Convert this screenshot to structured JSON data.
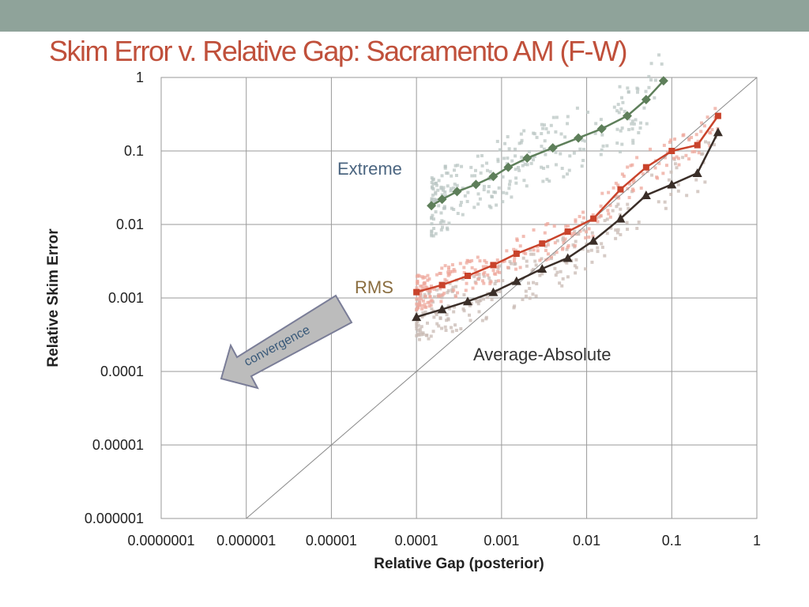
{
  "slide": {
    "title": "Skim Error v. Relative Gap: Sacramento AM (F-W)"
  },
  "colors": {
    "header_bar": "#8fa39a",
    "title": "#c0503b",
    "extreme": "#5e7f5a",
    "extreme_cloud": "#b9c6c3",
    "rms": "#c9432b",
    "rms_cloud": "#eea79b",
    "avg_abs": "#3a2e28",
    "avg_abs_cloud": "#c8b9b3",
    "arrow_fill": "#bcbcbc",
    "arrow_stroke": "#7a7d97"
  },
  "chart_data": {
    "type": "scatter",
    "title": "Skim Error v. Relative Gap: Sacramento AM (F-W)",
    "xlabel": "Relative Gap (posterior)",
    "ylabel": "Relative Skim Error",
    "x_scale": "log",
    "y_scale": "log",
    "xlim": [
      1e-07,
      1
    ],
    "ylim": [
      1e-06,
      1
    ],
    "grid": true,
    "x_ticks": [
      "0.0000001",
      "0.000001",
      "0.00001",
      "0.0001",
      "0.001",
      "0.01",
      "0.1",
      "1"
    ],
    "y_ticks": [
      "0.000001",
      "0.00001",
      "0.0001",
      "0.001",
      "0.01",
      "0.1",
      "1"
    ],
    "reference_line": {
      "name": "y = x",
      "from": [
        1e-06,
        1e-06
      ],
      "to": [
        1,
        1
      ]
    },
    "annotations": [
      "Extreme",
      "RMS",
      "Average-Absolute",
      "convergence"
    ],
    "series": [
      {
        "name": "Extreme",
        "color": "#5e7f5a",
        "points": [
          [
            0.00015,
            0.018
          ],
          [
            0.0002,
            0.022
          ],
          [
            0.0003,
            0.028
          ],
          [
            0.0005,
            0.035
          ],
          [
            0.0008,
            0.045
          ],
          [
            0.0012,
            0.06
          ],
          [
            0.002,
            0.08
          ],
          [
            0.004,
            0.11
          ],
          [
            0.008,
            0.15
          ],
          [
            0.015,
            0.2
          ],
          [
            0.03,
            0.3
          ],
          [
            0.05,
            0.5
          ],
          [
            0.08,
            0.9
          ]
        ]
      },
      {
        "name": "RMS",
        "color": "#c9432b",
        "points": [
          [
            0.0001,
            0.0012
          ],
          [
            0.0002,
            0.0015
          ],
          [
            0.0004,
            0.002
          ],
          [
            0.0008,
            0.0028
          ],
          [
            0.0015,
            0.004
          ],
          [
            0.003,
            0.0055
          ],
          [
            0.006,
            0.008
          ],
          [
            0.012,
            0.012
          ],
          [
            0.025,
            0.03
          ],
          [
            0.05,
            0.06
          ],
          [
            0.1,
            0.1
          ],
          [
            0.2,
            0.12
          ],
          [
            0.35,
            0.3
          ]
        ]
      },
      {
        "name": "Average-Absolute",
        "color": "#3a2e28",
        "points": [
          [
            0.0001,
            0.00055
          ],
          [
            0.0002,
            0.0007
          ],
          [
            0.0004,
            0.0009
          ],
          [
            0.0008,
            0.0012
          ],
          [
            0.0015,
            0.0017
          ],
          [
            0.003,
            0.0025
          ],
          [
            0.006,
            0.0035
          ],
          [
            0.012,
            0.006
          ],
          [
            0.025,
            0.012
          ],
          [
            0.05,
            0.025
          ],
          [
            0.1,
            0.035
          ],
          [
            0.2,
            0.05
          ],
          [
            0.35,
            0.18
          ]
        ]
      }
    ]
  }
}
